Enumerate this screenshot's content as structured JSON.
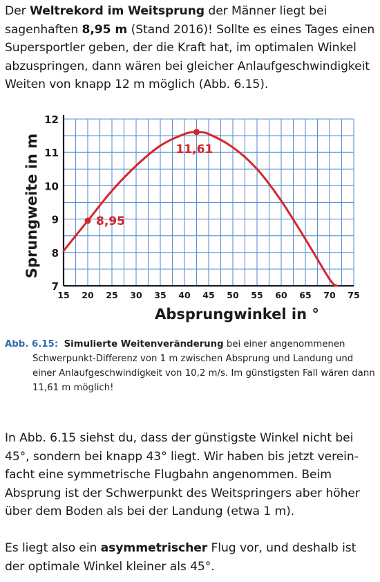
{
  "intro": {
    "t1": "Der ",
    "b1": "Weltrekord im Weitsprung",
    "t2": " der Männer liegt bei sagenhaften ",
    "b2": "8,95 m",
    "t3": " (Stand 2016)! Sollte es eines Tages einen Supersportler geben, der die Kraft hat, im optimalen Winkel abzuspringen, dann wären bei gleicher Anlaufge­schwindigkeit Weiten von knapp 12 m möglich (Abb. 6.15)."
  },
  "figure": {
    "caption_label": "Abb. 6.15:",
    "caption_bold": "Simulierte Weitenveränderung",
    "caption_line1_rest": " bei einer angenommenen",
    "caption_more": "Schwerpunkt-Differenz von 1 m zwischen Absprung und Landung und einer Anlaufgeschwindigkeit von 10,2 m/s. Im günstigsten Fall wären dann 11,61 m möglich!"
  },
  "chart_data": {
    "type": "line",
    "title": "",
    "xlabel": "Absprungwinkel in °",
    "ylabel": "Sprungweite in m",
    "xlim": [
      15,
      75
    ],
    "ylim": [
      7,
      12
    ],
    "x_ticks": [
      "15",
      "20",
      "25",
      "30",
      "35",
      "40",
      "45",
      "50",
      "55",
      "60",
      "65",
      "70",
      "75"
    ],
    "y_ticks": [
      "7",
      "8",
      "9",
      "10",
      "11",
      "12"
    ],
    "grid": true,
    "series": [
      {
        "x": [
          15,
          20,
          25,
          30,
          35,
          40,
          42.5,
          45,
          50,
          55,
          60,
          65,
          70,
          71.5
        ],
        "y": [
          8.05,
          8.95,
          9.85,
          10.6,
          11.2,
          11.55,
          11.61,
          11.55,
          11.15,
          10.5,
          9.55,
          8.4,
          7.2,
          7.0
        ]
      }
    ],
    "points": [
      {
        "x": 20,
        "y": 8.95,
        "label": "8,95"
      },
      {
        "x": 42.5,
        "y": 11.61,
        "label": "11,61"
      }
    ],
    "colors": {
      "curve": "#d8252c",
      "grid": "#5d8fd0",
      "axis": "#1a1a1a"
    }
  },
  "body2": {
    "text": "In Abb. 6.15 siehst du, dass der günstigste Winkel nicht bei 45°, sondern bei knapp 43° liegt. Wir haben bis jetzt verein­facht eine symmetrische Flugbahn angenommen. Beim Absprung ist der Schwerpunkt des Weitspringers aber höher über dem Boden als bei der Landung (etwa 1 m)."
  },
  "body3": {
    "t1": "Es liegt also ein ",
    "b1": "asymmetrischer",
    "t2": " Flug vor, und deshalb ist der optimale Winkel kleiner als 45°."
  }
}
